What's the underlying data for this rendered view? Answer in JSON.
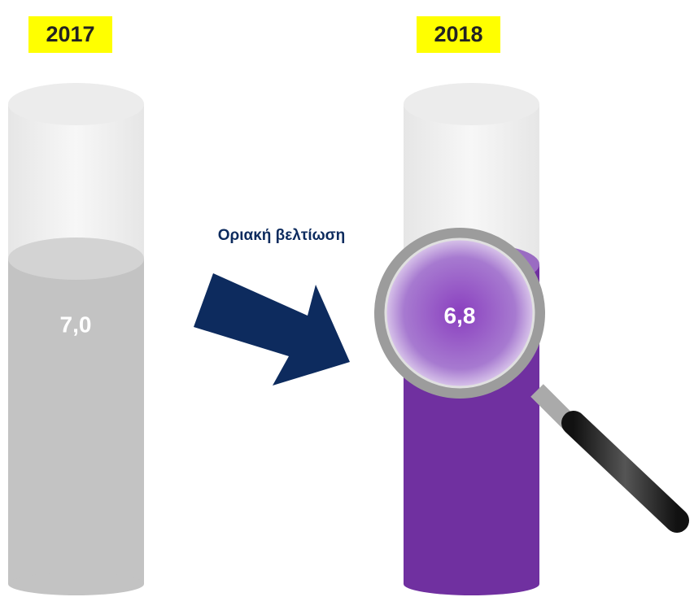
{
  "columns": [
    {
      "year": "2017",
      "value": "7,0"
    },
    {
      "year": "2018",
      "value": "6,8"
    }
  ],
  "annotation": "Οριακή βελτίωση"
}
